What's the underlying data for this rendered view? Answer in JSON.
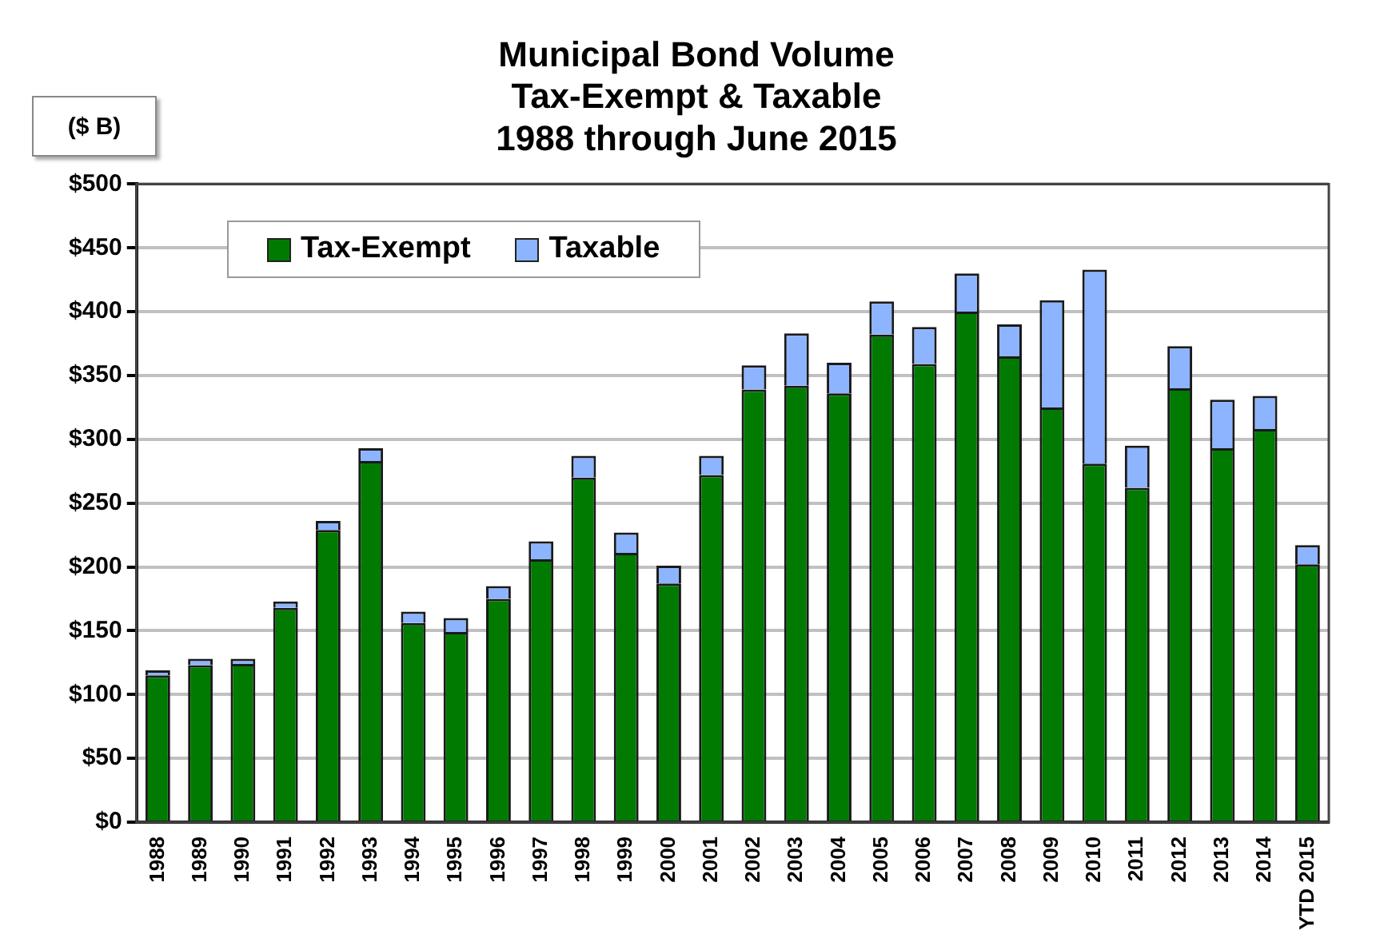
{
  "chart_data": {
    "type": "bar",
    "title": "Municipal Bond Volume\nTax-Exempt & Taxable\n1988 through June 2015",
    "ylabel": "($ B)",
    "categories": [
      "1988",
      "1989",
      "1990",
      "1991",
      "1992",
      "1993",
      "1994",
      "1995",
      "1996",
      "1997",
      "1998",
      "1999",
      "2000",
      "2001",
      "2002",
      "2003",
      "2004",
      "2005",
      "2006",
      "2007",
      "2008",
      "2009",
      "2010",
      "2011",
      "2012",
      "2013",
      "2014",
      "YTD 2015"
    ],
    "series": [
      {
        "name": "Tax-Exempt",
        "color": "#007a00",
        "values": [
          115,
          123,
          124,
          168,
          229,
          283,
          156,
          149,
          175,
          206,
          270,
          211,
          187,
          272,
          339,
          342,
          336,
          382,
          359,
          400,
          365,
          325,
          281,
          262,
          340,
          293,
          308,
          202
        ]
      },
      {
        "name": "Taxable",
        "color": "#8db4fe",
        "values": [
          4,
          5,
          4,
          5,
          7,
          10,
          9,
          11,
          10,
          14,
          17,
          16,
          14,
          15,
          19,
          41,
          24,
          26,
          29,
          30,
          25,
          84,
          152,
          33,
          33,
          38,
          26,
          15
        ]
      }
    ],
    "stacked": true,
    "ylim": [
      0,
      500
    ],
    "yticks": [
      {
        "value": 0,
        "label": "$0"
      },
      {
        "value": 50,
        "label": "$50"
      },
      {
        "value": 100,
        "label": "$100"
      },
      {
        "value": 150,
        "label": "$150"
      },
      {
        "value": 200,
        "label": "$200"
      },
      {
        "value": 250,
        "label": "$250"
      },
      {
        "value": 300,
        "label": "$300"
      },
      {
        "value": 350,
        "label": "$350"
      },
      {
        "value": 400,
        "label": "$400"
      },
      {
        "value": 450,
        "label": "$450"
      },
      {
        "value": 500,
        "label": "$500"
      }
    ],
    "grid": "y",
    "legend": "top left"
  }
}
